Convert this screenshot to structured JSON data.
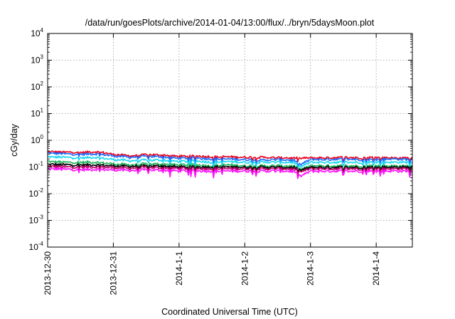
{
  "chart_data": {
    "type": "line",
    "title": "/data/run/goesPlots/archive/2014-01-04/13:00/flux/../bryn/5daysMoon.plot",
    "xlabel": "Coordinated Universal Time (UTC)",
    "ylabel": "cGy/day",
    "yscale": "log",
    "ylim": [
      0.0001,
      10000
    ],
    "xlim_days": [
      0,
      5.55
    ],
    "y_ticks": [
      {
        "value": 0.0001,
        "base": "10",
        "exp": "-4"
      },
      {
        "value": 0.001,
        "base": "10",
        "exp": "-3"
      },
      {
        "value": 0.01,
        "base": "10",
        "exp": "-2"
      },
      {
        "value": 0.1,
        "base": "10",
        "exp": "-1"
      },
      {
        "value": 1,
        "base": "10",
        "exp": "0"
      },
      {
        "value": 10,
        "base": "10",
        "exp": "1"
      },
      {
        "value": 100,
        "base": "10",
        "exp": "2"
      },
      {
        "value": 1000,
        "base": "10",
        "exp": "3"
      },
      {
        "value": 10000,
        "base": "10",
        "exp": "4"
      }
    ],
    "x_ticks": [
      {
        "day": 0,
        "label": "2013-12-30"
      },
      {
        "day": 1,
        "label": "2013-12-31"
      },
      {
        "day": 2,
        "label": "2014-1-1"
      },
      {
        "day": 3,
        "label": "2014-1-2"
      },
      {
        "day": 4,
        "label": "2014-1-3"
      },
      {
        "day": 5,
        "label": "2014-1-4"
      }
    ],
    "grid": true,
    "x_days": [
      0,
      0.25,
      0.5,
      0.75,
      1,
      1.25,
      1.5,
      1.75,
      2,
      2.25,
      2.5,
      2.75,
      3,
      3.25,
      3.5,
      3.75,
      3.85,
      4,
      4.25,
      4.5,
      4.75,
      5,
      5.25,
      5.55
    ],
    "series": [
      {
        "color": "#e8001c",
        "values": [
          0.38,
          0.36,
          0.35,
          0.37,
          0.3,
          0.26,
          0.29,
          0.28,
          0.25,
          0.26,
          0.24,
          0.24,
          0.23,
          0.23,
          0.22,
          0.22,
          0.21,
          0.22,
          0.22,
          0.23,
          0.22,
          0.23,
          0.22,
          0.22
        ]
      },
      {
        "color": "#1a6cff",
        "values": [
          0.33,
          0.31,
          0.3,
          0.31,
          0.26,
          0.23,
          0.25,
          0.24,
          0.21,
          0.22,
          0.2,
          0.2,
          0.19,
          0.18,
          0.19,
          0.18,
          0.12,
          0.19,
          0.19,
          0.2,
          0.19,
          0.19,
          0.2,
          0.19
        ]
      },
      {
        "color": "#18d7f0",
        "values": [
          0.24,
          0.23,
          0.22,
          0.23,
          0.19,
          0.17,
          0.18,
          0.18,
          0.16,
          0.17,
          0.15,
          0.16,
          0.15,
          0.15,
          0.15,
          0.15,
          0.1,
          0.15,
          0.15,
          0.15,
          0.15,
          0.15,
          0.15,
          0.15
        ]
      },
      {
        "color": "#1fb35a",
        "values": [
          0.16,
          0.15,
          0.15,
          0.15,
          0.13,
          0.12,
          0.13,
          0.13,
          0.12,
          0.12,
          0.11,
          0.12,
          0.11,
          0.11,
          0.11,
          0.11,
          0.08,
          0.11,
          0.11,
          0.11,
          0.11,
          0.11,
          0.11,
          0.11
        ]
      },
      {
        "color": "#000000",
        "values": [
          0.125,
          0.12,
          0.12,
          0.12,
          0.11,
          0.105,
          0.11,
          0.11,
          0.1,
          0.1,
          0.1,
          0.1,
          0.098,
          0.098,
          0.097,
          0.097,
          0.075,
          0.097,
          0.097,
          0.098,
          0.097,
          0.098,
          0.098,
          0.098
        ]
      },
      {
        "color": "#c0006a",
        "values": [
          0.105,
          0.1,
          0.1,
          0.1,
          0.095,
          0.09,
          0.095,
          0.093,
          0.088,
          0.088,
          0.087,
          0.087,
          0.086,
          0.085,
          0.085,
          0.085,
          0.065,
          0.085,
          0.085,
          0.086,
          0.085,
          0.086,
          0.086,
          0.086
        ]
      },
      {
        "color": "#ff10ff",
        "values": [
          0.085,
          0.082,
          0.08,
          0.08,
          0.078,
          0.074,
          0.077,
          0.076,
          0.072,
          0.072,
          0.071,
          0.071,
          0.07,
          0.07,
          0.07,
          0.07,
          0.045,
          0.07,
          0.07,
          0.071,
          0.07,
          0.07,
          0.071,
          0.07
        ]
      }
    ]
  }
}
